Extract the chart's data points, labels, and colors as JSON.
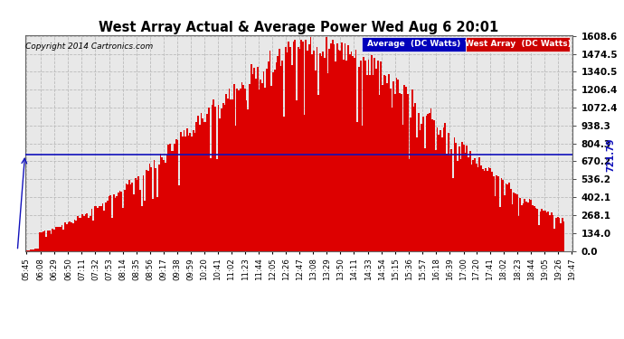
{
  "title": "West Array Actual & Average Power Wed Aug 6 20:01",
  "copyright": "Copyright 2014 Cartronics.com",
  "average_value": 721.79,
  "y_max": 1608.6,
  "y_ticks": [
    0.0,
    134.0,
    268.1,
    402.1,
    536.2,
    670.2,
    804.3,
    938.3,
    1072.4,
    1206.4,
    1340.5,
    1474.5,
    1608.6
  ],
  "legend_average_color": "#0000bb",
  "legend_west_color": "#cc0000",
  "bar_color": "#dd0000",
  "avg_line_color": "#1111bb",
  "bg_color": "#ffffff",
  "plot_bg_color": "#e8e8e8",
  "grid_color": "#bbbbbb",
  "x_labels": [
    "05:45",
    "06:08",
    "06:29",
    "06:50",
    "07:11",
    "07:32",
    "07:53",
    "08:14",
    "08:35",
    "08:56",
    "09:17",
    "09:38",
    "09:59",
    "10:20",
    "10:41",
    "11:02",
    "11:23",
    "11:44",
    "12:05",
    "12:26",
    "12:47",
    "13:08",
    "13:29",
    "13:50",
    "14:11",
    "14:33",
    "14:54",
    "15:15",
    "15:36",
    "15:57",
    "16:18",
    "16:39",
    "17:00",
    "17:20",
    "17:41",
    "18:02",
    "18:23",
    "18:44",
    "19:05",
    "19:26",
    "19:47"
  ],
  "n_bars": 350,
  "peak_time_min": 795,
  "sigma": 195,
  "seed": 77
}
